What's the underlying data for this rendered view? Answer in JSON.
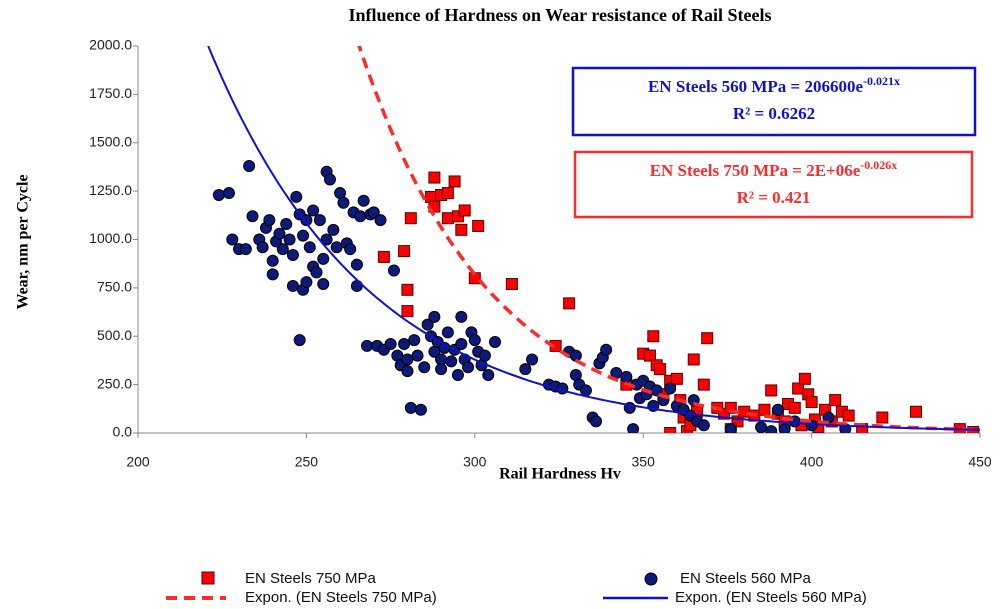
{
  "chart_data": {
    "type": "scatter",
    "title": "Influence of Hardness on Wear resistance of Rail Steels",
    "x_label": "Rail Hardness  Hv",
    "y_label": "Wear, nm per  Cycle",
    "xlim": [
      200,
      450
    ],
    "xticks": [
      200,
      250,
      300,
      350,
      400,
      450
    ],
    "ylim": [
      0,
      2000
    ],
    "yticks": [
      {
        "value": 0,
        "label": "0.0"
      },
      {
        "value": 250,
        "label": "250.0"
      },
      {
        "value": 500,
        "label": "500.0"
      },
      {
        "value": 750,
        "label": "750.0"
      },
      {
        "value": 1000,
        "label": "1000.0"
      },
      {
        "value": 1250,
        "label": "1250.0"
      },
      {
        "value": 1500,
        "label": "1500.0"
      },
      {
        "value": 1750,
        "label": "1750.0"
      },
      {
        "value": 2000,
        "label": "2000.0"
      }
    ],
    "grid": false,
    "series": [
      {
        "name": "EN Steels 750 MPa",
        "color": "#ff0000",
        "marker": "square",
        "x": [
          273,
          279,
          280,
          280,
          281,
          287,
          288,
          288,
          290,
          292,
          292,
          294,
          295,
          296,
          297,
          300,
          301,
          311,
          324,
          328,
          345,
          350,
          352,
          353,
          354,
          355,
          356,
          358,
          360,
          361,
          362,
          363,
          364,
          365,
          366,
          368,
          369,
          372,
          374,
          376,
          378,
          380,
          383,
          386,
          388,
          390,
          392,
          393,
          395,
          396,
          397,
          398,
          399,
          400,
          401,
          402,
          404,
          406,
          407,
          409,
          411,
          415,
          421,
          431,
          444,
          448,
          358,
          376
        ],
        "values": [
          910,
          940,
          740,
          630,
          1110,
          1220,
          1320,
          1170,
          1230,
          1240,
          1110,
          1300,
          1120,
          1050,
          1150,
          800,
          1070,
          770,
          450,
          670,
          250,
          410,
          400,
          500,
          350,
          330,
          200,
          270,
          280,
          170,
          80,
          10,
          40,
          380,
          110,
          250,
          490,
          130,
          100,
          130,
          60,
          110,
          90,
          120,
          220,
          100,
          60,
          150,
          130,
          230,
          40,
          280,
          200,
          160,
          70,
          30,
          120,
          60,
          170,
          110,
          90,
          20,
          80,
          110,
          20,
          5,
          0,
          20
        ]
      },
      {
        "name": "EN Steels 560 MPa",
        "color": "#0d1a7a",
        "marker": "circle",
        "x": [
          224,
          227,
          228,
          230,
          232,
          233,
          234,
          236,
          237,
          238,
          239,
          240,
          240,
          241,
          242,
          243,
          244,
          245,
          246,
          246,
          247,
          248,
          248,
          249,
          249,
          250,
          250,
          251,
          252,
          252,
          253,
          254,
          255,
          255,
          256,
          256,
          257,
          258,
          259,
          260,
          261,
          262,
          263,
          264,
          265,
          265,
          266,
          267,
          268,
          269,
          270,
          271,
          272,
          273,
          275,
          276,
          277,
          278,
          279,
          280,
          280,
          281,
          282,
          283,
          284,
          285,
          286,
          287,
          288,
          288,
          289,
          290,
          290,
          291,
          292,
          293,
          294,
          295,
          296,
          296,
          297,
          298,
          299,
          300,
          301,
          302,
          303,
          304,
          306,
          315,
          317,
          322,
          324,
          326,
          328,
          330,
          330,
          331,
          333,
          335,
          336,
          337,
          338,
          339,
          342,
          345,
          346,
          347,
          348,
          349,
          350,
          351,
          352,
          353,
          354,
          356,
          358,
          360,
          362,
          364,
          365,
          366,
          368,
          376,
          385,
          388,
          390,
          392,
          395,
          400,
          405,
          410
        ],
        "values": [
          1230,
          1240,
          1000,
          950,
          950,
          1380,
          1120,
          1000,
          960,
          1060,
          1100,
          890,
          820,
          990,
          1030,
          950,
          1080,
          1000,
          760,
          920,
          1220,
          1130,
          480,
          740,
          1020,
          780,
          1100,
          960,
          1150,
          860,
          830,
          1100,
          900,
          770,
          1350,
          1000,
          1310,
          1050,
          960,
          1240,
          1190,
          980,
          950,
          1140,
          870,
          760,
          1120,
          1200,
          450,
          1130,
          1140,
          450,
          1100,
          430,
          460,
          840,
          400,
          350,
          460,
          380,
          320,
          130,
          480,
          400,
          120,
          340,
          560,
          500,
          600,
          420,
          470,
          380,
          330,
          440,
          520,
          370,
          430,
          300,
          460,
          600,
          380,
          340,
          520,
          480,
          420,
          350,
          400,
          300,
          470,
          330,
          380,
          250,
          240,
          230,
          420,
          300,
          400,
          250,
          220,
          80,
          60,
          360,
          390,
          430,
          310,
          290,
          130,
          20,
          250,
          180,
          270,
          200,
          240,
          140,
          220,
          170,
          230,
          140,
          120,
          90,
          170,
          60,
          40,
          20,
          30,
          10,
          120,
          20,
          60,
          40,
          80,
          20
        ]
      }
    ],
    "trendlines": [
      {
        "name": "Expon. (EN Steels 750 MPa)",
        "color": "#ff2a2a",
        "dashed": true,
        "coefficient": 2000000,
        "rate": -0.026,
        "equation": {
          "base": "EN  Steels 750 MPa  = 2E+06e",
          "exponent": "-0.026x"
        },
        "r2": "R² = 0.421"
      },
      {
        "name": "Expon. (EN Steels 560 MPa)",
        "color": "#1010d0",
        "dashed": false,
        "coefficient": 206600,
        "rate": -0.021,
        "equation": {
          "base": "EN  Steels 560 MPa  = 206600e",
          "exponent": "-0.021x"
        },
        "r2": "R² = 0.6262"
      }
    ]
  }
}
